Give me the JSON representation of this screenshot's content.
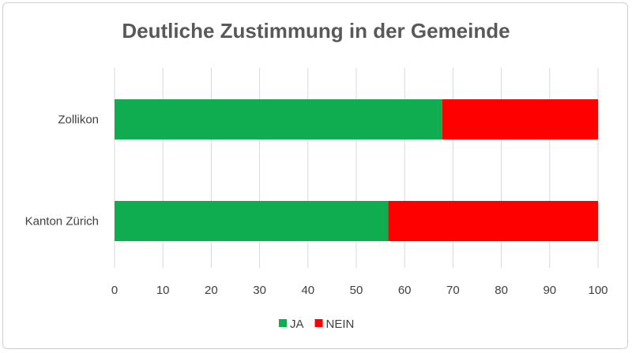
{
  "chart_data": {
    "type": "bar",
    "orientation": "horizontal",
    "stacked": true,
    "title": "Deutliche Zustimmung in der Gemeinde",
    "categories": [
      "Zollikon",
      "Kanton Zürich"
    ],
    "series": [
      {
        "name": "JA",
        "color": "#0fad4f",
        "values": [
          67.8,
          56.6
        ]
      },
      {
        "name": "NEIN",
        "color": "#ff0000",
        "values": [
          32.2,
          43.4
        ]
      }
    ],
    "xlim": [
      0,
      100
    ],
    "xticks": [
      "0",
      "10",
      "20",
      "30",
      "40",
      "50",
      "60",
      "70",
      "80",
      "90",
      "100"
    ],
    "grid": true,
    "legend": "bottom"
  }
}
